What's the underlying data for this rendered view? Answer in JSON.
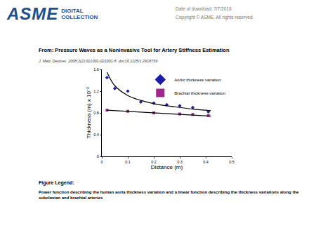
{
  "header": {
    "logo": "ASME",
    "logo_sub": [
      "DIGITAL",
      "COLLECTION"
    ],
    "date": "Date of download:  7/7/2016",
    "copyright": "Copyright © ASME. All rights reserved."
  },
  "source": {
    "title": "From: Pressure Waves as a Noninvasive Tool for Artery Stiffness Estimation",
    "citation": "J. Med. Devices. 2008;2(2):021001-021001-5. doi:10.1115/1.2918739"
  },
  "chart_data": {
    "type": "scatter",
    "x_label": "Distance (m)",
    "y_label": "Thickness (m) x 10⁻³",
    "xlim": [
      0,
      0.5
    ],
    "xticks": [
      0,
      0.1,
      0.2,
      0.3,
      0.4,
      0.5
    ],
    "ylim": [
      0,
      1.6
    ],
    "yticks": [
      0,
      0.4,
      0.8,
      1.2,
      1.6
    ],
    "grid": false,
    "legend": "upper right",
    "series": [
      {
        "name": "Aortic thickness variation",
        "color": "#1c1ca8",
        "marker": "diamond",
        "x": [
          0.02,
          0.05,
          0.1,
          0.15,
          0.2,
          0.25,
          0.3,
          0.35,
          0.41
        ],
        "values": [
          1.45,
          1.25,
          1.2,
          1.0,
          0.98,
          0.95,
          0.93,
          0.9,
          0.82
        ]
      },
      {
        "name": "Brachial thickness variation",
        "color": "#a0268c",
        "marker": "square",
        "x": [
          0.02,
          0.1,
          0.2,
          0.3,
          0.35,
          0.41
        ],
        "values": [
          0.85,
          0.83,
          0.8,
          0.78,
          0.77,
          0.75
        ]
      },
      {
        "type": "line",
        "color": "#000000",
        "line_style": "solid",
        "x": [
          0.02,
          0.05,
          0.1,
          0.15,
          0.2,
          0.25,
          0.3,
          0.35,
          0.42
        ],
        "values": [
          1.55,
          1.3,
          1.12,
          1.03,
          0.97,
          0.93,
          0.9,
          0.87,
          0.84
        ]
      },
      {
        "type": "line",
        "color": "#000000",
        "line_style": "solid",
        "x": [
          0.02,
          0.42
        ],
        "values": [
          0.85,
          0.74
        ]
      }
    ]
  },
  "figure_legend": {
    "heading": "Figure Legend:",
    "text": "Power function describing the human aorta thickness variation and a linear function describing the thickness variations along the subclavian and brachial arteries"
  }
}
